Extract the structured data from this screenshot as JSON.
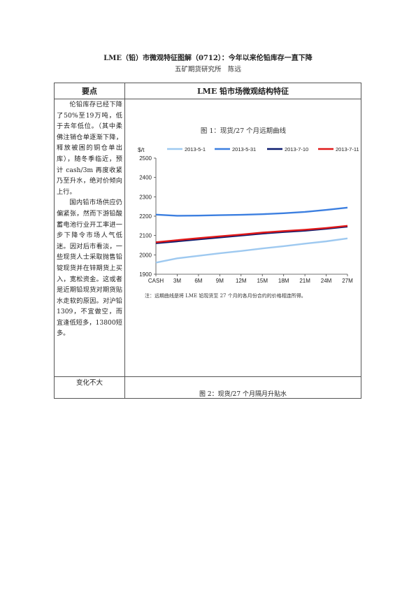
{
  "doc": {
    "title": "LME（铅）市微观特征图解（0712）：今年以来伦铅库存一直下降",
    "subtitle": "五矿期货研究所　陈远",
    "header_left": "要点",
    "header_right": "LME 铅市场微观结构特征",
    "left_paragraphs": [
      "伦铅库存已经下降了50%至19万吨，低于去年低位。（其中柔佛注销仓单逐渐下降，释放被困的铜仓单出库），随冬季临近，预计 cash/3m 再度收紧乃至升水，绝对价倾向上行。",
      "国内铅市场供应仍偏紧张，然而下游铅酸蓄电池行业开工率进一步下降令市场人气低迷。因对后市看淡，一些现货人士采取抛售铅锭现货并在锌期货上买入，宽松资金。这或者是近期铅现货对期货贴水走软的原因。对沪铅1309，不宜做空，而宜逢低短多，13800短多。"
    ],
    "change_label": "变化不大",
    "fig2_caption": "图 2：现货/27 个月隔月升贴水",
    "chart_note": "注：远期曲线是将 LME 铅现货至 27 个月的各月份合约的价格相连所得。"
  },
  "chart_data": {
    "type": "line",
    "title": "图 1：现货/27 个月远期曲线",
    "ylabel": "$/t",
    "xlabel": "",
    "ylim": [
      1900,
      2500
    ],
    "yticks": [
      1900,
      2000,
      2100,
      2200,
      2300,
      2400,
      2500
    ],
    "xticks": [
      "CASH",
      "3M",
      "6M",
      "9M",
      "12M",
      "15M",
      "18M",
      "21M",
      "24M",
      "27M"
    ],
    "x": [
      0,
      3,
      6,
      9,
      12,
      15,
      18,
      21,
      24,
      27
    ],
    "legend_position": "top",
    "series": [
      {
        "name": "2013-5-1",
        "color": "#9ec9f0",
        "values": [
          1960,
          1982,
          1995,
          2008,
          2020,
          2033,
          2045,
          2058,
          2070,
          2085
        ]
      },
      {
        "name": "2013-5-31",
        "color": "#3c7fe0",
        "values": [
          2208,
          2202,
          2203,
          2205,
          2207,
          2210,
          2215,
          2222,
          2232,
          2244
        ]
      },
      {
        "name": "2013-7-10",
        "color": "#0a1a6e",
        "values": [
          2060,
          2070,
          2080,
          2090,
          2100,
          2110,
          2118,
          2125,
          2135,
          2146
        ]
      },
      {
        "name": "2013-7-11",
        "color": "#e01818",
        "values": [
          2065,
          2076,
          2086,
          2096,
          2105,
          2115,
          2123,
          2130,
          2139,
          2150
        ]
      }
    ]
  }
}
